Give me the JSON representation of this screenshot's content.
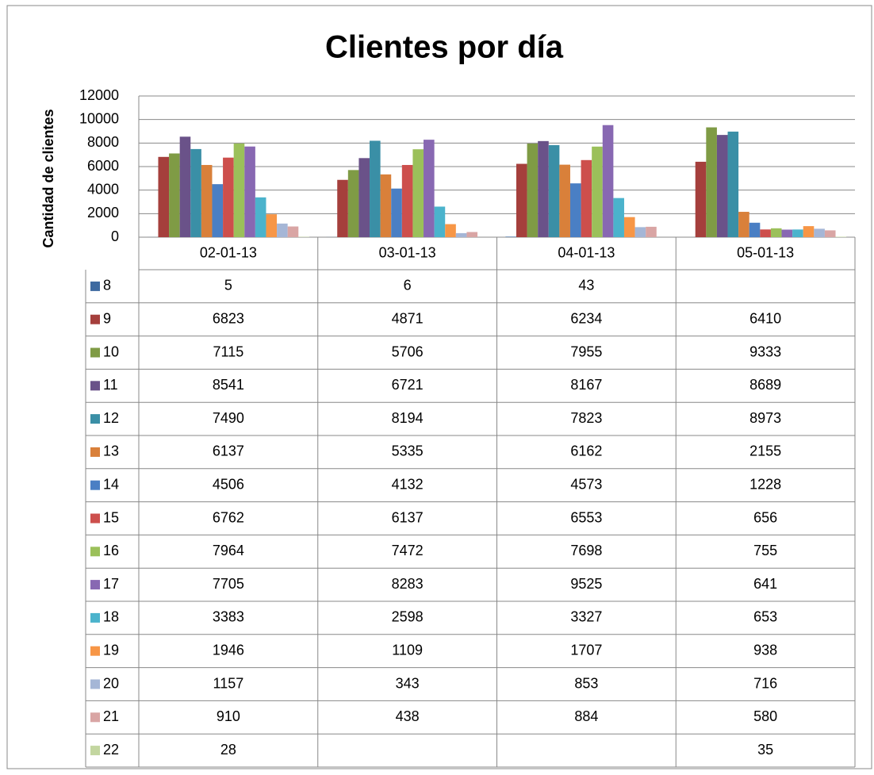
{
  "chart_data": {
    "type": "bar",
    "title": "Clientes por día",
    "y_label": "Cantidad de clientes",
    "categories": [
      "02-01-13",
      "03-01-13",
      "04-01-13",
      "05-01-13"
    ],
    "ylim": [
      0,
      12000
    ],
    "yticks": [
      0,
      2000,
      4000,
      6000,
      8000,
      10000,
      12000
    ],
    "grid": true,
    "data_table": true,
    "series": [
      {
        "name": "8",
        "color": "#3e6aa0",
        "values": [
          5,
          6,
          43,
          null
        ]
      },
      {
        "name": "9",
        "color": "#a53f3c",
        "values": [
          6823,
          4871,
          6234,
          6410
        ]
      },
      {
        "name": "10",
        "color": "#7f9b45",
        "values": [
          7115,
          5706,
          7955,
          9333
        ]
      },
      {
        "name": "11",
        "color": "#6a5289",
        "values": [
          8541,
          6721,
          8167,
          8689
        ]
      },
      {
        "name": "12",
        "color": "#3a8fa6",
        "values": [
          7490,
          8194,
          7823,
          8973
        ]
      },
      {
        "name": "13",
        "color": "#d9803a",
        "values": [
          6137,
          5335,
          6162,
          2155
        ]
      },
      {
        "name": "14",
        "color": "#4a7fc4",
        "values": [
          4506,
          4132,
          4573,
          1228
        ]
      },
      {
        "name": "15",
        "color": "#cd4f4c",
        "values": [
          6762,
          6137,
          6553,
          656
        ]
      },
      {
        "name": "16",
        "color": "#9bc05a",
        "values": [
          7964,
          7472,
          7698,
          755
        ]
      },
      {
        "name": "17",
        "color": "#8868b2",
        "values": [
          7705,
          8283,
          9525,
          641
        ]
      },
      {
        "name": "18",
        "color": "#4bb3cc",
        "values": [
          3383,
          2598,
          3327,
          653
        ]
      },
      {
        "name": "19",
        "color": "#f79646",
        "values": [
          1946,
          1109,
          1707,
          938
        ]
      },
      {
        "name": "20",
        "color": "#a5b6d6",
        "values": [
          1157,
          343,
          853,
          716
        ]
      },
      {
        "name": "21",
        "color": "#d9a5a4",
        "values": [
          910,
          438,
          884,
          580
        ]
      },
      {
        "name": "22",
        "color": "#c3d6a0",
        "values": [
          28,
          null,
          null,
          35
        ]
      }
    ]
  }
}
